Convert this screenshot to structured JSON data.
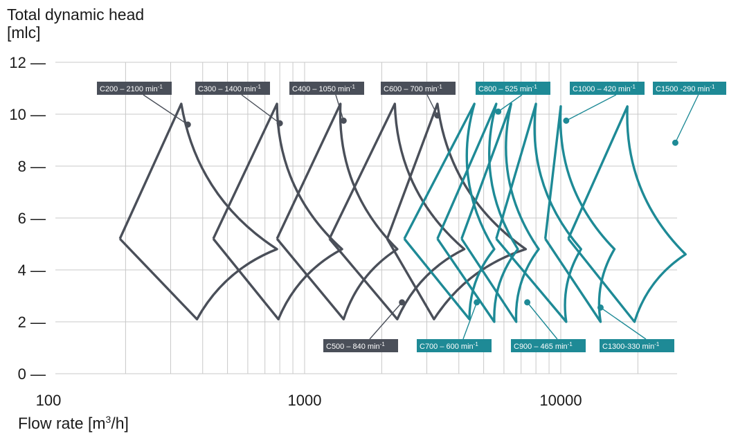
{
  "chart_data": {
    "type": "line",
    "title": "",
    "ylabel_line1": "Total dynamic head",
    "ylabel_line2": "[mlc]",
    "xlabel_main": "Flow rate [m",
    "xlabel_sup": "3",
    "xlabel_tail": "/h]",
    "x_scale": "log",
    "xlim": [
      100,
      30000
    ],
    "ylim": [
      0,
      12
    ],
    "y_ticks": [
      0,
      2,
      4,
      6,
      8,
      10,
      12
    ],
    "y_tick_labels": [
      "0 —",
      "2 —",
      "4 —",
      "6 —",
      "8 —",
      "10 —",
      "12 —"
    ],
    "x_ticks": [
      100,
      1000,
      10000
    ],
    "x_tick_labels": [
      "100",
      "1000",
      "10000"
    ],
    "grid": true,
    "colors": {
      "gray": "#4a4f59",
      "teal": "#1e8a96",
      "grid": "#c8c8c8"
    },
    "series": [
      {
        "name": "C200 – 2100 min-1",
        "color": "gray",
        "points": [
          [
            190,
            5.2
          ],
          [
            330,
            10.4
          ],
          [
            780,
            4.8
          ],
          [
            380,
            2.1
          ],
          [
            190,
            5.2
          ]
        ]
      },
      {
        "name": "C300 – 1400 min-1",
        "color": "gray",
        "points": [
          [
            440,
            5.2
          ],
          [
            780,
            10.4
          ],
          [
            1400,
            4.8
          ],
          [
            790,
            2.1
          ],
          [
            440,
            5.2
          ]
        ]
      },
      {
        "name": "C400 – 1050 min-1",
        "color": "gray",
        "points": [
          [
            780,
            5.2
          ],
          [
            1380,
            10.4
          ],
          [
            2300,
            4.8
          ],
          [
            1420,
            2.1
          ],
          [
            780,
            5.2
          ]
        ]
      },
      {
        "name": "C500 – 840 min-1",
        "color": "gray",
        "points": [
          [
            1250,
            5.2
          ],
          [
            2250,
            10.4
          ],
          [
            4200,
            4.8
          ],
          [
            2300,
            2.1
          ],
          [
            1250,
            5.2
          ]
        ]
      },
      {
        "name": "C600 – 700 min-1",
        "color": "gray",
        "points": [
          [
            2100,
            5.2
          ],
          [
            3300,
            10.4
          ],
          [
            7300,
            4.8
          ],
          [
            3200,
            2.1
          ],
          [
            2100,
            5.2
          ]
        ]
      },
      {
        "name": "C700 – 600 min-1",
        "color": "teal",
        "points": [
          [
            2450,
            5.2
          ],
          [
            4600,
            10.4
          ],
          [
            5500,
            4.8
          ],
          [
            4400,
            2.1
          ],
          [
            2450,
            5.2
          ]
        ]
      },
      {
        "name": "C800 – 525 min-1",
        "color": "teal",
        "points": [
          [
            3300,
            5.2
          ],
          [
            5600,
            10.4
          ],
          [
            6800,
            4.8
          ],
          [
            5500,
            2.0
          ],
          [
            3300,
            5.2
          ]
        ]
      },
      {
        "name": "C900 – 465 min-1",
        "color": "teal",
        "points": [
          [
            4100,
            5.2
          ],
          [
            6400,
            10.4
          ],
          [
            8200,
            4.8
          ],
          [
            6700,
            2.0
          ],
          [
            4100,
            5.2
          ]
        ]
      },
      {
        "name": "C1000 – 420 min-1",
        "color": "teal",
        "points": [
          [
            5600,
            5.2
          ],
          [
            8000,
            10.4
          ],
          [
            12000,
            4.8
          ],
          [
            10500,
            2.0
          ],
          [
            5600,
            5.2
          ]
        ]
      },
      {
        "name": "C1300 -330 min-1",
        "color": "teal",
        "points": [
          [
            8700,
            5.2
          ],
          [
            10000,
            10.3
          ],
          [
            16200,
            4.8
          ],
          [
            14300,
            2.0
          ],
          [
            8700,
            5.2
          ]
        ]
      },
      {
        "name": "C1500 -290 min-1",
        "color": "teal",
        "points": [
          [
            10700,
            5.2
          ],
          [
            18200,
            10.3
          ],
          [
            30700,
            4.6
          ],
          [
            19400,
            2.0
          ],
          [
            10700,
            5.2
          ]
        ]
      }
    ],
    "annotations": [
      {
        "base": "C200 – 2100 min",
        "sup": "-1",
        "style": "gray",
        "point": [
          350,
          9.6
        ]
      },
      {
        "base": "C300 – 1400 min",
        "sup": "-1",
        "style": "gray",
        "point": [
          800,
          9.65
        ]
      },
      {
        "base": "C400 – 1050 min",
        "sup": "-1",
        "style": "gray",
        "point": [
          1420,
          9.75
        ]
      },
      {
        "base": "C600 – 700 min",
        "sup": "-1",
        "style": "gray",
        "point": [
          3300,
          9.95
        ]
      },
      {
        "base": "C800 – 525 min",
        "sup": "-1",
        "style": "teal",
        "point": [
          5700,
          10.1
        ]
      },
      {
        "base": "C1000 – 420 min",
        "sup": "-1",
        "style": "teal",
        "point": [
          10500,
          9.75
        ]
      },
      {
        "base": "C1500 -290 min",
        "sup": "-1",
        "style": "teal",
        "point": [
          28000,
          8.9
        ]
      },
      {
        "base": "C500 – 840 min",
        "sup": "-1",
        "style": "gray",
        "point": [
          2400,
          2.75
        ]
      },
      {
        "base": "C700 – 600 min",
        "sup": "-1",
        "style": "teal",
        "point": [
          4700,
          2.75
        ]
      },
      {
        "base": "C900 – 465 min",
        "sup": "-1",
        "style": "teal",
        "point": [
          7400,
          2.75
        ]
      },
      {
        "base": "C1300-330 min",
        "sup": "-1",
        "style": "teal",
        "point": [
          14300,
          2.55
        ]
      }
    ]
  }
}
